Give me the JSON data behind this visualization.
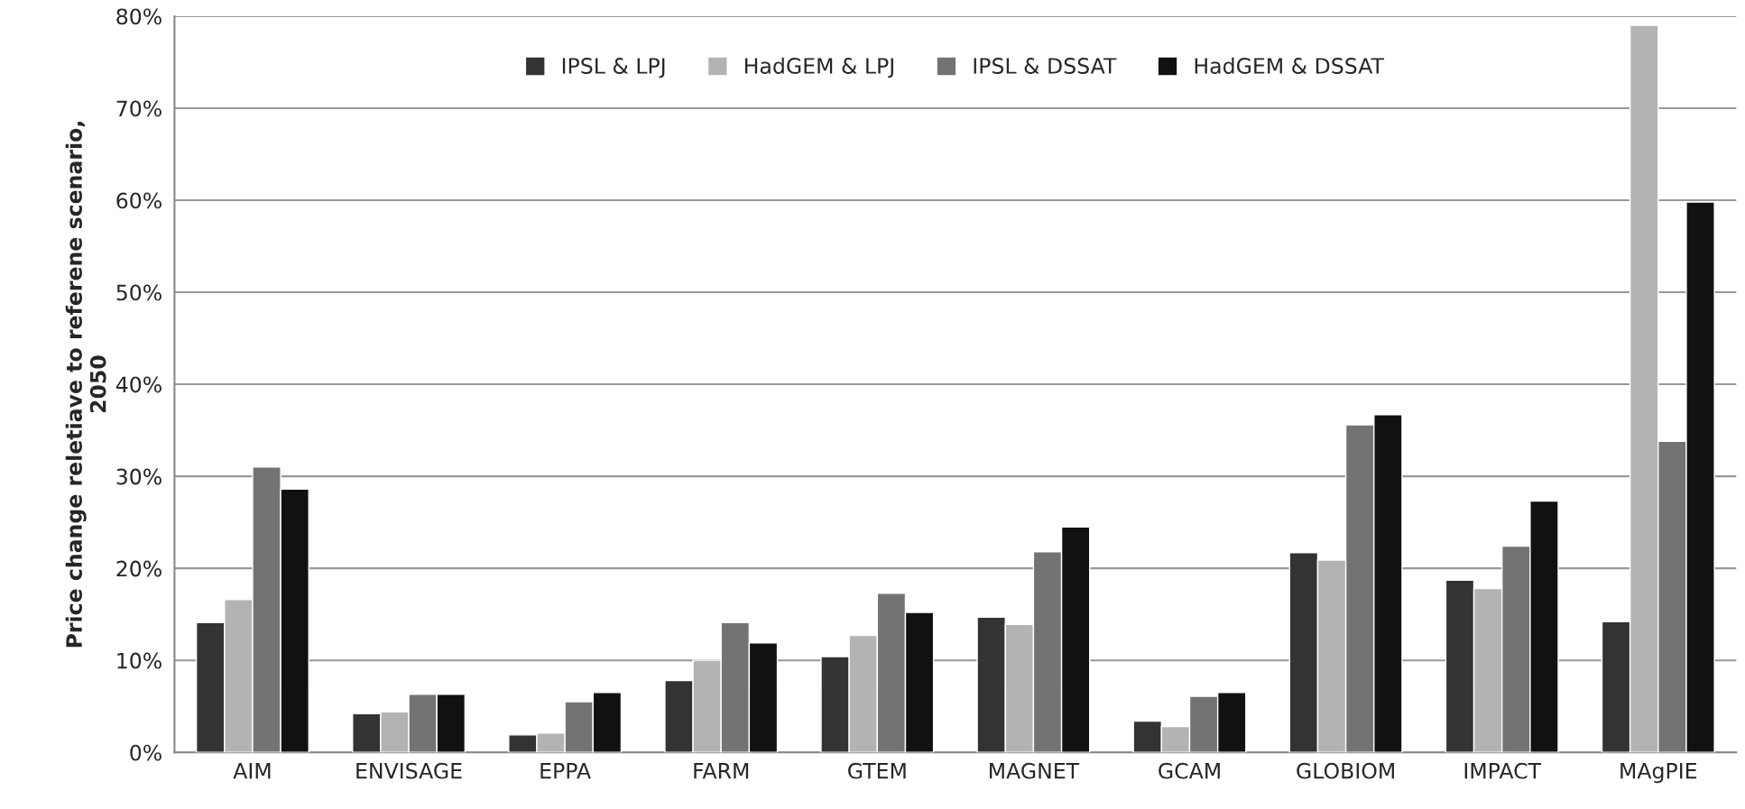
{
  "chart_data": {
    "type": "bar",
    "ylabel": "Price change reletiave to referene scenario,\n2050",
    "categories": [
      "AIM",
      "ENVISAGE",
      "EPPA",
      "FARM",
      "GTEM",
      "MAGNET",
      "GCAM",
      "GLOBIOM",
      "IMPACT",
      "MAgPIE"
    ],
    "series": [
      {
        "name": "IPSL & LPJ",
        "color": "#333333",
        "values": [
          14.1,
          4.2,
          1.9,
          7.8,
          10.4,
          14.7,
          3.4,
          21.7,
          18.7,
          14.2
        ]
      },
      {
        "name": "HadGEM & LPJ",
        "color": "#b3b3b3",
        "values": [
          16.6,
          4.4,
          2.1,
          10.0,
          12.7,
          13.9,
          2.8,
          20.9,
          17.8,
          79.0
        ]
      },
      {
        "name": "IPSL & DSSAT",
        "color": "#737373",
        "values": [
          31.0,
          6.3,
          5.5,
          14.1,
          17.3,
          21.8,
          6.1,
          35.6,
          22.4,
          33.8
        ]
      },
      {
        "name": "HadGEM & DSSAT",
        "color": "#111111",
        "values": [
          28.6,
          6.3,
          6.5,
          11.9,
          15.2,
          24.5,
          6.5,
          36.7,
          27.3,
          59.8
        ]
      }
    ],
    "ylim": [
      0,
      80
    ],
    "yticks": [
      {
        "value": 0,
        "label": "0%"
      },
      {
        "value": 10,
        "label": "10%"
      },
      {
        "value": 20,
        "label": "20%"
      },
      {
        "value": 30,
        "label": "30%"
      },
      {
        "value": 40,
        "label": "40%"
      },
      {
        "value": 50,
        "label": "50%"
      },
      {
        "value": 60,
        "label": "60%"
      },
      {
        "value": 70,
        "label": "70%"
      },
      {
        "value": 80,
        "label": "80%"
      }
    ],
    "grid": "y",
    "legend": "top"
  }
}
